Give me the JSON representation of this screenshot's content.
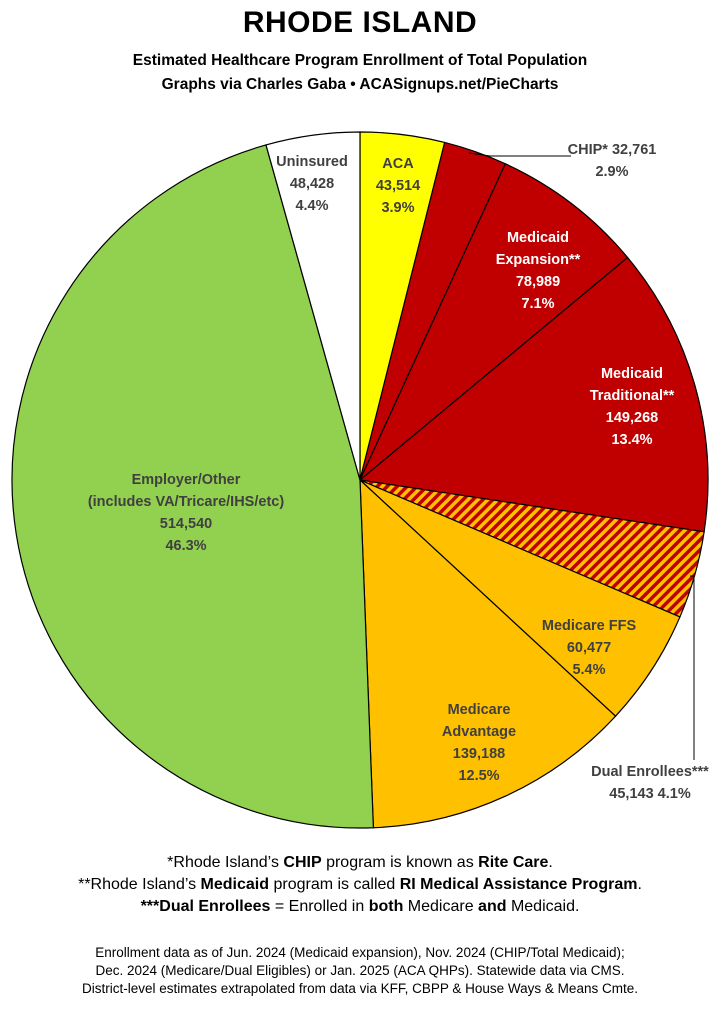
{
  "header": {
    "title": "RHODE ISLAND",
    "subtitle": "Estimated Healthcare Program Enrollment of Total Population",
    "byline": "Graphs via Charles Gaba   •   ACASignups.net/PieCharts"
  },
  "chart_data": {
    "type": "pie",
    "title": "RHODE ISLAND",
    "slices": [
      {
        "label": "ACA",
        "value": 43514,
        "percent": "3.9%",
        "color": "#ffff00"
      },
      {
        "label": "CHIP*",
        "value": 32761,
        "percent": "2.9%",
        "color": "#c00000"
      },
      {
        "label": "Medicaid Expansion**",
        "value": 78989,
        "percent": "7.1%",
        "color": "#c00000"
      },
      {
        "label": "Medicaid Traditional**",
        "value": 149268,
        "percent": "13.4%",
        "color": "#c00000"
      },
      {
        "label": "Dual Enrollees***",
        "value": 45143,
        "percent": "4.1%",
        "color": "hatched #c00000/#ffc000"
      },
      {
        "label": "Medicare FFS",
        "value": 60477,
        "percent": "5.4%",
        "color": "#ffc000"
      },
      {
        "label": "Medicare Advantage",
        "value": 139188,
        "percent": "12.5%",
        "color": "#ffc000"
      },
      {
        "label": "Employer/Other (includes VA/Tricare/IHS/etc)",
        "value": 514540,
        "percent": "46.3%",
        "color": "#92d050"
      },
      {
        "label": "Uninsured",
        "value": 48428,
        "percent": "4.4%",
        "color": "#ffffff"
      }
    ],
    "labels": {
      "aca": [
        "ACA",
        "43,514",
        "3.9%"
      ],
      "chip": [
        "CHIP* 32,761",
        "2.9%"
      ],
      "medicaid_exp": [
        "Medicaid",
        "Expansion**",
        "78,989",
        "7.1%"
      ],
      "medicaid_trad": [
        "Medicaid",
        "Traditional**",
        "149,268",
        "13.4%"
      ],
      "dual": [
        "Dual Enrollees***",
        "45,143 4.1%"
      ],
      "medicare_ffs": [
        "Medicare FFS",
        "60,477",
        "5.4%"
      ],
      "medicare_adv": [
        "Medicare",
        "Advantage",
        "139,188",
        "12.5%"
      ],
      "employer": [
        "Employer/Other",
        "(includes VA/Tricare/IHS/etc)",
        "514,540",
        "46.3%"
      ],
      "uninsured": [
        "Uninsured",
        "48,428",
        "4.4%"
      ]
    }
  },
  "notes": {
    "n1_pre": "*Rhode Island’s ",
    "n1_b1": "CHIP",
    "n1_mid": " program is known as ",
    "n1_b2": "Rite Care",
    "n1_post": ".",
    "n2_pre": "**Rhode Island’s ",
    "n2_b1": "Medicaid",
    "n2_mid": " program is called ",
    "n2_b2": "RI Medical Assistance Program",
    "n2_post": ".",
    "n3_b1": "***Dual Enrollees",
    "n3_mid1": " = Enrolled in ",
    "n3_b2": "both",
    "n3_mid2": " Medicare ",
    "n3_b3": "and",
    "n3_post": " Medicaid."
  },
  "source": {
    "line1": "Enrollment data as of Jun. 2024 (Medicaid expansion), Nov. 2024 (CHIP/Total Medicaid);",
    "line2": "Dec. 2024 (Medicare/Dual Eligibles) or Jan. 2025 (ACA QHPs). Statewide data via CMS.",
    "line3": "District-level estimates extrapolated from data via KFF, CBPP & House Ways & Means Cmte."
  }
}
